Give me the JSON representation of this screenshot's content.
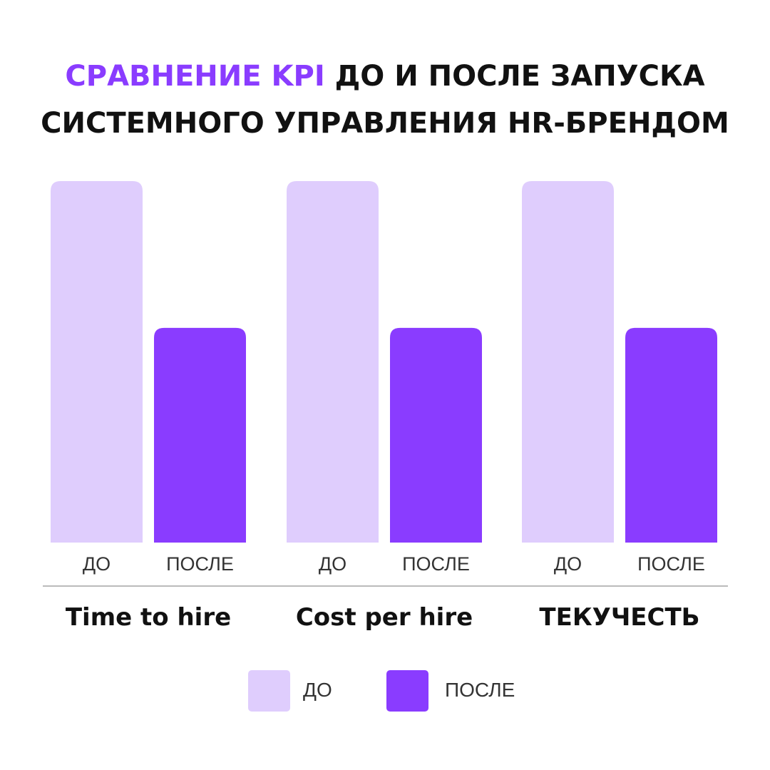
{
  "title": {
    "accent": "СРАВНЕНИЕ KPI",
    "line1_rest": " ДО И ПОСЛЕ ЗАПУСКА",
    "line2": "СИСТЕМНОГО УПРАВЛЕНИЯ HR-БРЕНДОМ"
  },
  "colors": {
    "before": "#dfcdfd",
    "after": "#8a3cff",
    "axis": "#bbbbbb",
    "accent": "#8a3cff"
  },
  "chart_data": {
    "type": "bar",
    "categories": [
      "Time to hire",
      "Cost per hire",
      "ТЕКУЧЕСТЬ"
    ],
    "series": [
      {
        "name": "ДО",
        "values": [
          100,
          100,
          100
        ]
      },
      {
        "name": "ПОСЛЕ",
        "values": [
          59.4,
          59.4,
          59.4
        ]
      }
    ],
    "bar_labels": [
      "ДО",
      "ПОСЛЕ"
    ],
    "ylim": [
      0,
      100
    ],
    "grid": false,
    "legend_position": "bottom-center"
  },
  "legend": [
    {
      "label": "ДО"
    },
    {
      "label": "ПОСЛЕ"
    }
  ]
}
